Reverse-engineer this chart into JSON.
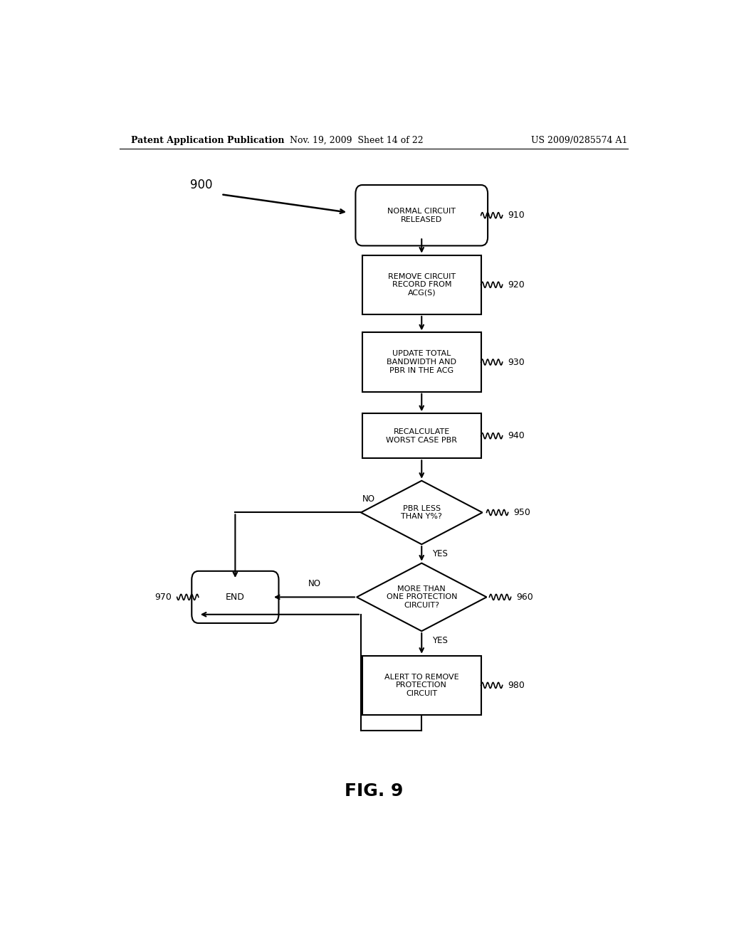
{
  "bg_color": "#ffffff",
  "text_color": "#000000",
  "header_left": "Patent Application Publication",
  "header_center": "Nov. 19, 2009  Sheet 14 of 22",
  "header_right": "US 2009/0285574 A1",
  "fig_label": "FIG. 9",
  "diagram_label": "900"
}
